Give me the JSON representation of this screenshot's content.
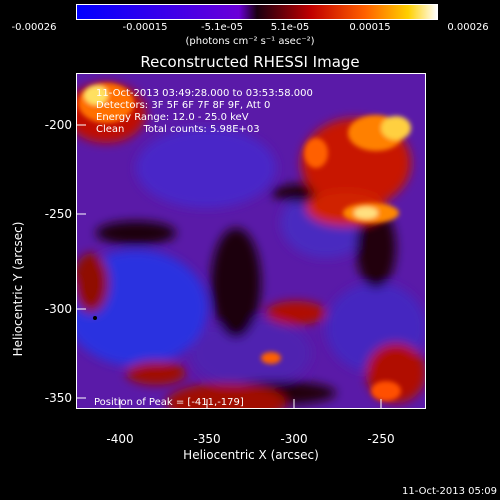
{
  "colorbar": {
    "ticks": [
      "-0.00026",
      "-0.00015",
      "-5.1e-05",
      "5.1e-05",
      "0.00015",
      "0.00026"
    ],
    "unit": "(photons cm⁻² s⁻¹ asec⁻²)"
  },
  "chart_data": {
    "type": "heatmap",
    "title": "Reconstructed RHESSI Image",
    "xlabel": "Heliocentric X (arcsec)",
    "ylabel": "Heliocentric Y (arcsec)",
    "xlim": [
      -420,
      -225
    ],
    "ylim": [
      -365,
      -178
    ],
    "x_ticks": [
      "-400",
      "-350",
      "-300",
      "-250"
    ],
    "y_ticks": [
      "-200",
      "-250",
      "-300",
      "-350"
    ],
    "colormap_range": [
      -0.00026,
      0.00026
    ],
    "peak_position": [
      -411,
      -179
    ]
  },
  "info": {
    "time_range": "11-Oct-2013 03:49:28.000 to 03:53:58.000",
    "detectors": "Detectors: 3F 5F 6F 7F 8F 9F, Att 0",
    "energy": "Energy Range: 12.0 - 25.0 keV",
    "method": "Clean      Total counts: 5.98E+03",
    "peak": "Position of Peak = [-411,-179]"
  },
  "timestamp": "11-Oct-2013 05:09"
}
